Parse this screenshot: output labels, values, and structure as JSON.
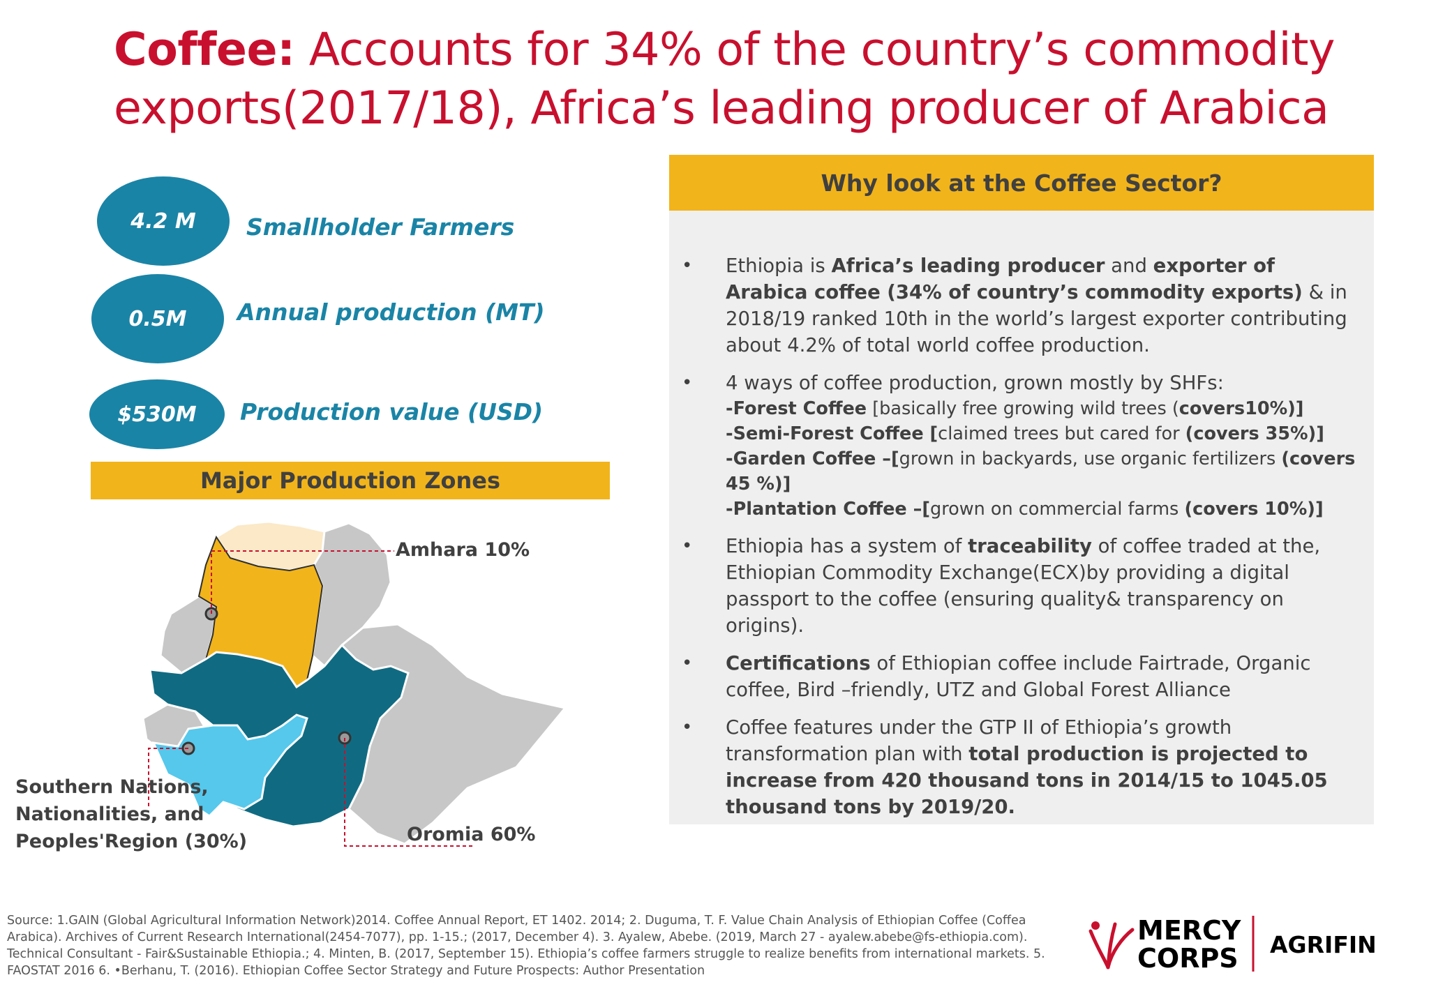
{
  "title": {
    "lead": "Coffee:",
    "rest": " Accounts for 34% of the country’s commodity exports(2017/18), Africa’s leading producer of Arabica"
  },
  "stats": [
    {
      "value": "4.2 M",
      "label": "Smallholder Farmers"
    },
    {
      "value": "0.5M",
      "label": "Annual production (MT)"
    },
    {
      "value": "$530M",
      "label": "Production value (USD)"
    }
  ],
  "zones": {
    "header": "Major Production Zones",
    "amhara": "Amhara 10%",
    "snnpr": [
      "Southern Nations,",
      "Nationalities, and",
      "Peoples'Region (30%)"
    ],
    "oromia": "Oromia 60%"
  },
  "panel": {
    "header": "Why look at the Coffee Sector?",
    "bullet_glyph": "•",
    "b1": {
      "t1": "Ethiopia is ",
      "b1": "Africa’s leading producer",
      "t2": " and ",
      "b2": "exporter of Arabica coffee (34% of country’s commodity exports)",
      "t3": " & in 2018/19 ranked 10th in the world’s largest exporter contributing about 4.2% of total world coffee production."
    },
    "b2": {
      "intro": "4 ways of coffee production, grown mostly by SHFs:",
      "l1_b": "-Forest Coffee",
      "l1_t": " [basically free growing wild trees (",
      "l1_c": "covers10%)]",
      "l2_b": "-Semi-Forest Coffee [",
      "l2_t": "claimed trees but cared for ",
      "l2_c": "(covers 35%)]",
      "l3_b": "-Garden Coffee –[",
      "l3_t": "grown in backyards, use organic fertilizers ",
      "l3_c": "(covers 45 %)]",
      "l4_b": "-Plantation Coffee –[",
      "l4_t": "grown on commercial farms ",
      "l4_c": "(covers 10%)]"
    },
    "b3": {
      "t1": "Ethiopia has a system of ",
      "b1": "traceability",
      "t2": " of coffee traded at the, Ethiopian Commodity Exchange(ECX)by providing a digital passport to the coffee (ensuring quality& transparency on origins)."
    },
    "b4": {
      "b1": "Certifications",
      "t1": " of Ethiopian coffee include Fairtrade, Organic coffee, Bird –friendly, UTZ and Global Forest Alliance"
    },
    "b5": {
      "t1": "Coffee features under the GTP II of Ethiopia’s growth transformation plan with ",
      "b1": "total production is projected to increase from 420 thousand tons in 2014/15 to 1045.05 thousand tons by 2019/20."
    }
  },
  "source": "Source: 1.GAIN (Global Agricultural Information Network)2014. Coffee Annual Report, ET 1402. 2014;  2. Duguma, T. F. Value Chain Analysis of Ethiopian Coffee (Coffea Arabica). Archives of Current Research International(2454-7077), pp. 1-15.; (2017, December 4).   3. Ayalew, Abebe. (2019, March 27 - ayalew.abebe@fs-ethiopia.com). Technical Consultant - Fair&Sustainable Ethiopia.;  4. Minten, B. (2017, September 15). Ethiopia’s coffee farmers struggle to realize benefits from international markets. 5. FAOSTAT 2016 6. •Berhanu, T. (2016). Ethiopian Coffee Sector Strategy and Future Prospects:  Author Presentation",
  "logo": {
    "mercy": "MERCY",
    "corps": "CORPS",
    "agrifin": "AGRIFIN"
  },
  "colors": {
    "title_red": "#c8102e",
    "teal": "#1a84a6",
    "gold": "#f2b41b",
    "dark_teal": "#0f6f87",
    "light_blue": "#55c8ec",
    "panel_grey": "#efefef"
  }
}
